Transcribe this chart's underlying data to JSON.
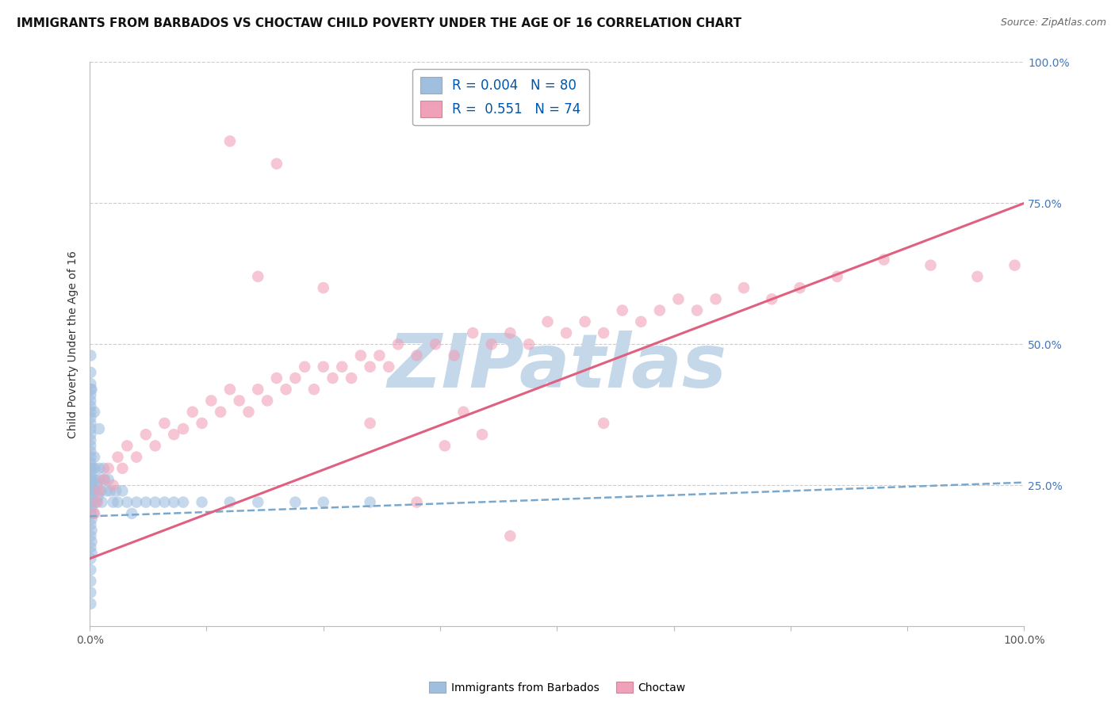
{
  "title": "IMMIGRANTS FROM BARBADOS VS CHOCTAW CHILD POVERTY UNDER THE AGE OF 16 CORRELATION CHART",
  "source": "Source: ZipAtlas.com",
  "ylabel": "Child Poverty Under the Age of 16",
  "y_tick_labels": [
    "",
    "25.0%",
    "50.0%",
    "75.0%",
    "100.0%"
  ],
  "y_tick_values": [
    0.0,
    0.25,
    0.5,
    0.75,
    1.0
  ],
  "x_tick_labels": [
    "0.0%",
    "100.0%"
  ],
  "x_tick_values": [
    0.0,
    1.0
  ],
  "x_range": [
    0.0,
    1.0
  ],
  "y_range": [
    0.0,
    1.0
  ],
  "watermark": "ZIPatlas",
  "legend_R1": "0.004",
  "legend_N1": "80",
  "legend_R2": "0.551",
  "legend_N2": "74",
  "legend_label1": "Immigrants from Barbados",
  "legend_label2": "Choctaw",
  "blue_color": "#a0bede",
  "pink_color": "#f0a0b8",
  "blue_line_color": "#7aa8cc",
  "pink_line_color": "#e06080",
  "blue_line_x": [
    0.0,
    1.0
  ],
  "blue_line_y": [
    0.195,
    0.255
  ],
  "pink_line_x": [
    0.0,
    1.0
  ],
  "pink_line_y": [
    0.12,
    0.75
  ],
  "bg_color": "#ffffff",
  "scatter_alpha": 0.6,
  "scatter_size": 110,
  "grid_color": "#cccccc",
  "title_fontsize": 11,
  "source_fontsize": 9,
  "axis_label_fontsize": 10,
  "legend_fontsize": 12,
  "watermark_color": "#c5d8ea",
  "watermark_fontsize": 68,
  "tick_label_color": "#4477bb",
  "blue_x": [
    0.001,
    0.001,
    0.001,
    0.001,
    0.001,
    0.001,
    0.001,
    0.001,
    0.001,
    0.001,
    0.001,
    0.001,
    0.001,
    0.001,
    0.001,
    0.001,
    0.001,
    0.001,
    0.001,
    0.001,
    0.001,
    0.001,
    0.001,
    0.001,
    0.001,
    0.001,
    0.001,
    0.001,
    0.001,
    0.001,
    0.002,
    0.002,
    0.002,
    0.002,
    0.002,
    0.002,
    0.002,
    0.003,
    0.003,
    0.003,
    0.004,
    0.004,
    0.005,
    0.005,
    0.006,
    0.006,
    0.007,
    0.008,
    0.009,
    0.01,
    0.01,
    0.012,
    0.013,
    0.015,
    0.016,
    0.018,
    0.02,
    0.022,
    0.025,
    0.028,
    0.03,
    0.035,
    0.04,
    0.045,
    0.05,
    0.06,
    0.07,
    0.08,
    0.09,
    0.1,
    0.12,
    0.15,
    0.18,
    0.22,
    0.25,
    0.3,
    0.01,
    0.005,
    0.002,
    0.001
  ],
  "blue_y": [
    0.42,
    0.4,
    0.38,
    0.36,
    0.34,
    0.32,
    0.3,
    0.28,
    0.26,
    0.24,
    0.22,
    0.2,
    0.18,
    0.16,
    0.14,
    0.12,
    0.1,
    0.08,
    0.06,
    0.04,
    0.45,
    0.43,
    0.41,
    0.39,
    0.37,
    0.35,
    0.33,
    0.31,
    0.29,
    0.27,
    0.25,
    0.23,
    0.21,
    0.19,
    0.17,
    0.15,
    0.13,
    0.28,
    0.26,
    0.24,
    0.22,
    0.2,
    0.3,
    0.28,
    0.26,
    0.24,
    0.22,
    0.25,
    0.23,
    0.28,
    0.26,
    0.24,
    0.22,
    0.28,
    0.26,
    0.24,
    0.26,
    0.24,
    0.22,
    0.24,
    0.22,
    0.24,
    0.22,
    0.2,
    0.22,
    0.22,
    0.22,
    0.22,
    0.22,
    0.22,
    0.22,
    0.22,
    0.22,
    0.22,
    0.22,
    0.22,
    0.35,
    0.38,
    0.42,
    0.48
  ],
  "pink_x": [
    0.005,
    0.008,
    0.01,
    0.015,
    0.02,
    0.025,
    0.03,
    0.035,
    0.04,
    0.05,
    0.06,
    0.07,
    0.08,
    0.09,
    0.1,
    0.11,
    0.12,
    0.13,
    0.14,
    0.15,
    0.16,
    0.17,
    0.18,
    0.19,
    0.2,
    0.21,
    0.22,
    0.23,
    0.24,
    0.25,
    0.26,
    0.27,
    0.28,
    0.29,
    0.3,
    0.31,
    0.32,
    0.33,
    0.35,
    0.37,
    0.39,
    0.41,
    0.43,
    0.45,
    0.47,
    0.49,
    0.51,
    0.53,
    0.55,
    0.57,
    0.59,
    0.61,
    0.63,
    0.65,
    0.67,
    0.7,
    0.73,
    0.76,
    0.8,
    0.85,
    0.9,
    0.95,
    0.99,
    0.38,
    0.42,
    0.55,
    0.18,
    0.25,
    0.3,
    0.4,
    0.15,
    0.2,
    0.35,
    0.45
  ],
  "pink_y": [
    0.2,
    0.22,
    0.24,
    0.26,
    0.28,
    0.25,
    0.3,
    0.28,
    0.32,
    0.3,
    0.34,
    0.32,
    0.36,
    0.34,
    0.35,
    0.38,
    0.36,
    0.4,
    0.38,
    0.42,
    0.4,
    0.38,
    0.42,
    0.4,
    0.44,
    0.42,
    0.44,
    0.46,
    0.42,
    0.46,
    0.44,
    0.46,
    0.44,
    0.48,
    0.46,
    0.48,
    0.46,
    0.5,
    0.48,
    0.5,
    0.48,
    0.52,
    0.5,
    0.52,
    0.5,
    0.54,
    0.52,
    0.54,
    0.52,
    0.56,
    0.54,
    0.56,
    0.58,
    0.56,
    0.58,
    0.6,
    0.58,
    0.6,
    0.62,
    0.65,
    0.64,
    0.62,
    0.64,
    0.32,
    0.34,
    0.36,
    0.62,
    0.6,
    0.36,
    0.38,
    0.86,
    0.82,
    0.22,
    0.16
  ]
}
